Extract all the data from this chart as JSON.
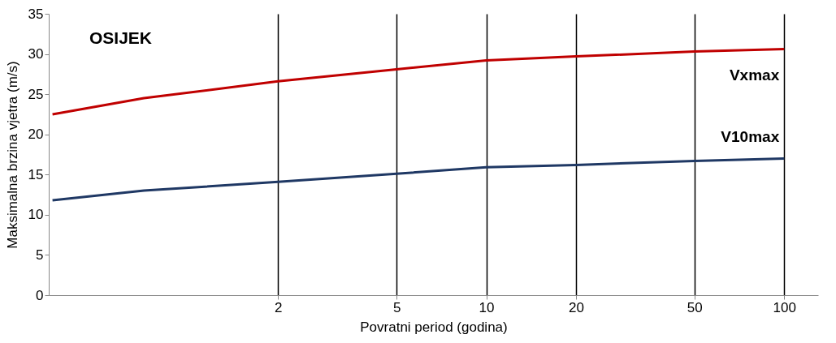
{
  "chart_data": {
    "type": "line",
    "xlabel": "Povratni period (godina)",
    "ylabel": "Maksimalna brzina vjetra (m/s)",
    "annotations": [
      "OSIJEK"
    ],
    "xlim": [
      0.34,
      130
    ],
    "xticks": [
      2,
      5,
      10,
      20,
      50,
      100
    ],
    "log": "x",
    "ylim": [
      0,
      35
    ],
    "yticks": [
      0,
      5,
      10,
      15,
      20,
      25,
      30,
      35
    ],
    "grid": "x",
    "legend": false,
    "series": [
      {
        "name": "Vxmax",
        "color": "#c00000",
        "x": [
          0.35,
          0.71,
          2,
          5,
          10,
          20,
          50,
          100
        ],
        "values": [
          22.5,
          24.5,
          26.6,
          28.1,
          29.2,
          29.7,
          30.3,
          30.6
        ]
      },
      {
        "name": "V10max",
        "color": "#1f3864",
        "x": [
          0.35,
          0.71,
          2,
          5,
          10,
          20,
          50,
          100
        ],
        "values": [
          11.8,
          13.0,
          14.1,
          15.1,
          15.9,
          16.2,
          16.7,
          17.0
        ]
      }
    ]
  }
}
